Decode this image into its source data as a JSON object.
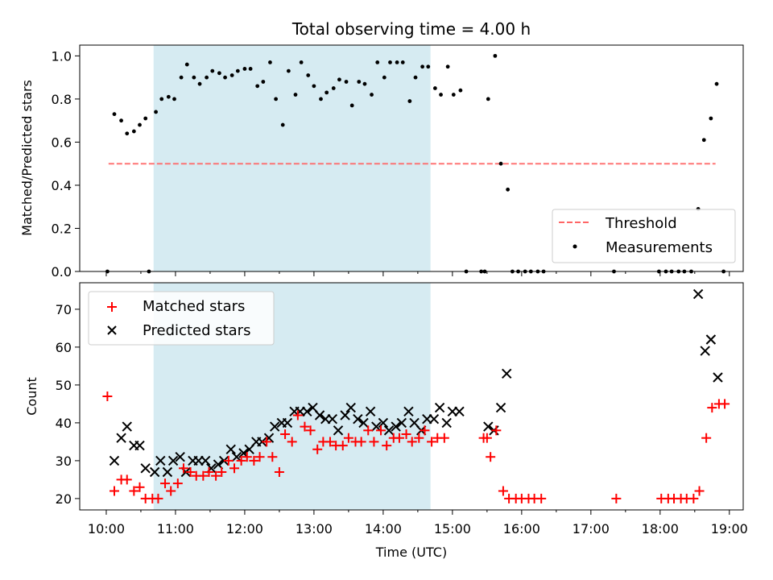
{
  "chart_data": [
    {
      "type": "scatter",
      "title": "Total observing time = 4.00 h",
      "xlabel": "",
      "ylabel": "Matched/Predicted stars",
      "xlim": [
        "09:37",
        "19:12"
      ],
      "ylim": [
        0,
        1.05
      ],
      "yticks": [
        "0.0",
        "0.2",
        "0.4",
        "0.6",
        "0.8",
        "1.0"
      ],
      "shaded_span": {
        "start": "10:41",
        "end": "14:41",
        "color": "#add8e6"
      },
      "threshold": {
        "name": "Threshold",
        "y": 0.5,
        "x_start": "10:02",
        "x_end": "18:48",
        "color": "#ff6666"
      },
      "legend": {
        "position": "lower-right",
        "entries": [
          "Threshold",
          "Measurements"
        ]
      },
      "series": [
        {
          "name": "Measurements",
          "color": "#000000",
          "marker": "dot",
          "points": [
            [
              "10:01",
              0.0
            ],
            [
              "10:07",
              0.73
            ],
            [
              "10:13",
              0.7
            ],
            [
              "10:18",
              0.64
            ],
            [
              "10:24",
              0.65
            ],
            [
              "10:29",
              0.68
            ],
            [
              "10:34",
              0.71
            ],
            [
              "10:37",
              0.0
            ],
            [
              "10:43",
              0.74
            ],
            [
              "10:48",
              0.8
            ],
            [
              "10:54",
              0.81
            ],
            [
              "10:59",
              0.8
            ],
            [
              "11:05",
              0.9
            ],
            [
              "11:10",
              0.96
            ],
            [
              "11:16",
              0.9
            ],
            [
              "11:21",
              0.87
            ],
            [
              "11:27",
              0.9
            ],
            [
              "11:32",
              0.93
            ],
            [
              "11:38",
              0.92
            ],
            [
              "11:43",
              0.9
            ],
            [
              "11:49",
              0.91
            ],
            [
              "11:54",
              0.93
            ],
            [
              "12:00",
              0.94
            ],
            [
              "12:05",
              0.94
            ],
            [
              "12:11",
              0.86
            ],
            [
              "12:16",
              0.88
            ],
            [
              "12:22",
              0.97
            ],
            [
              "12:27",
              0.8
            ],
            [
              "12:33",
              0.68
            ],
            [
              "12:38",
              0.93
            ],
            [
              "12:44",
              0.82
            ],
            [
              "12:49",
              0.97
            ],
            [
              "12:55",
              0.91
            ],
            [
              "13:00",
              0.86
            ],
            [
              "13:06",
              0.8
            ],
            [
              "13:11",
              0.83
            ],
            [
              "13:17",
              0.85
            ],
            [
              "13:22",
              0.89
            ],
            [
              "13:28",
              0.88
            ],
            [
              "13:33",
              0.77
            ],
            [
              "13:39",
              0.88
            ],
            [
              "13:44",
              0.87
            ],
            [
              "13:50",
              0.82
            ],
            [
              "13:55",
              0.97
            ],
            [
              "14:01",
              0.9
            ],
            [
              "14:06",
              0.97
            ],
            [
              "14:12",
              0.97
            ],
            [
              "14:17",
              0.97
            ],
            [
              "14:23",
              0.79
            ],
            [
              "14:28",
              0.9
            ],
            [
              "14:34",
              0.95
            ],
            [
              "14:39",
              0.95
            ],
            [
              "14:45",
              0.85
            ],
            [
              "14:50",
              0.82
            ],
            [
              "14:56",
              0.95
            ],
            [
              "15:01",
              0.82
            ],
            [
              "15:07",
              0.84
            ],
            [
              "15:12",
              0.0
            ],
            [
              "15:25",
              0.0
            ],
            [
              "15:28",
              0.0
            ],
            [
              "15:31",
              0.8
            ],
            [
              "15:37",
              1.0
            ],
            [
              "15:42",
              0.5
            ],
            [
              "15:48",
              0.38
            ],
            [
              "15:52",
              0.0
            ],
            [
              "15:57",
              0.0
            ],
            [
              "16:03",
              0.0
            ],
            [
              "16:08",
              0.0
            ],
            [
              "16:14",
              0.0
            ],
            [
              "16:19",
              0.0
            ],
            [
              "17:20",
              0.0
            ],
            [
              "17:59",
              0.0
            ],
            [
              "18:05",
              0.0
            ],
            [
              "18:10",
              0.0
            ],
            [
              "18:16",
              0.0
            ],
            [
              "18:21",
              0.0
            ],
            [
              "18:27",
              0.0
            ],
            [
              "18:33",
              0.29
            ],
            [
              "18:38",
              0.61
            ],
            [
              "18:44",
              0.71
            ],
            [
              "18:49",
              0.87
            ],
            [
              "18:55",
              0.0
            ]
          ]
        }
      ]
    },
    {
      "type": "scatter",
      "title": "",
      "xlabel": "Time (UTC)",
      "ylabel": "Count",
      "xlim": [
        "09:37",
        "19:12"
      ],
      "ylim": [
        17,
        77
      ],
      "xticks": [
        "10:00",
        "11:00",
        "12:00",
        "13:00",
        "14:00",
        "15:00",
        "16:00",
        "17:00",
        "18:00",
        "19:00"
      ],
      "yticks": [
        "20",
        "30",
        "40",
        "50",
        "60",
        "70"
      ],
      "shaded_span": {
        "start": "10:41",
        "end": "14:41",
        "color": "#add8e6"
      },
      "legend": {
        "position": "top-left",
        "entries": [
          "Matched stars",
          "Predicted stars"
        ]
      },
      "series": [
        {
          "name": "Matched stars",
          "color": "#ff0000",
          "marker": "plus",
          "points": [
            [
              "10:01",
              47
            ],
            [
              "10:07",
              22
            ],
            [
              "10:13",
              25
            ],
            [
              "10:18",
              25
            ],
            [
              "10:24",
              22
            ],
            [
              "10:29",
              23
            ],
            [
              "10:34",
              20
            ],
            [
              "10:40",
              20
            ],
            [
              "10:45",
              20
            ],
            [
              "10:51",
              24
            ],
            [
              "10:56",
              22
            ],
            [
              "11:02",
              24
            ],
            [
              "11:07",
              28
            ],
            [
              "11:13",
              27
            ],
            [
              "11:18",
              26
            ],
            [
              "11:24",
              26
            ],
            [
              "11:29",
              27
            ],
            [
              "11:35",
              26
            ],
            [
              "11:40",
              27
            ],
            [
              "11:46",
              30
            ],
            [
              "11:51",
              28
            ],
            [
              "11:57",
              30
            ],
            [
              "12:02",
              31
            ],
            [
              "12:08",
              30
            ],
            [
              "12:13",
              31
            ],
            [
              "12:19",
              35
            ],
            [
              "12:24",
              31
            ],
            [
              "12:30",
              27
            ],
            [
              "12:35",
              37
            ],
            [
              "12:41",
              35
            ],
            [
              "12:46",
              42
            ],
            [
              "12:52",
              39
            ],
            [
              "12:57",
              38
            ],
            [
              "13:03",
              33
            ],
            [
              "13:08",
              35
            ],
            [
              "13:14",
              35
            ],
            [
              "13:19",
              34
            ],
            [
              "13:25",
              34
            ],
            [
              "13:30",
              36
            ],
            [
              "13:36",
              35
            ],
            [
              "13:41",
              35
            ],
            [
              "13:47",
              38
            ],
            [
              "13:52",
              35
            ],
            [
              "13:58",
              38
            ],
            [
              "14:03",
              34
            ],
            [
              "14:09",
              36
            ],
            [
              "14:14",
              36
            ],
            [
              "14:20",
              37
            ],
            [
              "14:25",
              35
            ],
            [
              "14:31",
              36
            ],
            [
              "14:36",
              38
            ],
            [
              "14:42",
              35
            ],
            [
              "14:47",
              36
            ],
            [
              "14:53",
              36
            ],
            [
              "15:27",
              36
            ],
            [
              "15:30",
              36
            ],
            [
              "15:33",
              31
            ],
            [
              "15:38",
              38
            ],
            [
              "15:44",
              22
            ],
            [
              "15:49",
              20
            ],
            [
              "15:55",
              20
            ],
            [
              "16:00",
              20
            ],
            [
              "16:06",
              20
            ],
            [
              "16:11",
              20
            ],
            [
              "16:17",
              20
            ],
            [
              "17:22",
              20
            ],
            [
              "18:01",
              20
            ],
            [
              "18:07",
              20
            ],
            [
              "18:12",
              20
            ],
            [
              "18:18",
              20
            ],
            [
              "18:23",
              20
            ],
            [
              "18:29",
              20
            ],
            [
              "18:34",
              22
            ],
            [
              "18:40",
              36
            ],
            [
              "18:45",
              44
            ],
            [
              "18:51",
              45
            ],
            [
              "18:56",
              45
            ]
          ]
        },
        {
          "name": "Predicted stars",
          "color": "#000000",
          "marker": "x",
          "points": [
            [
              "10:07",
              30
            ],
            [
              "10:13",
              36
            ],
            [
              "10:18",
              39
            ],
            [
              "10:24",
              34
            ],
            [
              "10:29",
              34
            ],
            [
              "10:34",
              28
            ],
            [
              "10:42",
              27
            ],
            [
              "10:47",
              30
            ],
            [
              "10:53",
              27
            ],
            [
              "10:58",
              30
            ],
            [
              "11:04",
              31
            ],
            [
              "11:09",
              27
            ],
            [
              "11:15",
              30
            ],
            [
              "11:20",
              30
            ],
            [
              "11:26",
              30
            ],
            [
              "11:31",
              28
            ],
            [
              "11:37",
              29
            ],
            [
              "11:42",
              30
            ],
            [
              "11:48",
              33
            ],
            [
              "11:53",
              31
            ],
            [
              "11:59",
              32
            ],
            [
              "12:04",
              33
            ],
            [
              "12:10",
              35
            ],
            [
              "12:15",
              35
            ],
            [
              "12:21",
              36
            ],
            [
              "12:26",
              39
            ],
            [
              "12:32",
              40
            ],
            [
              "12:37",
              40
            ],
            [
              "12:43",
              43
            ],
            [
              "12:48",
              43
            ],
            [
              "12:54",
              43
            ],
            [
              "12:59",
              44
            ],
            [
              "13:05",
              42
            ],
            [
              "13:10",
              41
            ],
            [
              "13:16",
              41
            ],
            [
              "13:21",
              38
            ],
            [
              "13:27",
              42
            ],
            [
              "13:32",
              44
            ],
            [
              "13:38",
              41
            ],
            [
              "13:43",
              40
            ],
            [
              "13:49",
              43
            ],
            [
              "13:54",
              39
            ],
            [
              "14:00",
              40
            ],
            [
              "14:05",
              38
            ],
            [
              "14:11",
              39
            ],
            [
              "14:16",
              40
            ],
            [
              "14:22",
              43
            ],
            [
              "14:27",
              40
            ],
            [
              "14:33",
              38
            ],
            [
              "14:38",
              41
            ],
            [
              "14:44",
              41
            ],
            [
              "14:49",
              44
            ],
            [
              "14:55",
              40
            ],
            [
              "15:00",
              43
            ],
            [
              "15:06",
              43
            ],
            [
              "15:31",
              39
            ],
            [
              "15:36",
              38
            ],
            [
              "15:42",
              44
            ],
            [
              "15:47",
              53
            ],
            [
              "18:33",
              74
            ],
            [
              "18:39",
              59
            ],
            [
              "18:44",
              62
            ],
            [
              "18:50",
              52
            ]
          ]
        }
      ]
    }
  ]
}
